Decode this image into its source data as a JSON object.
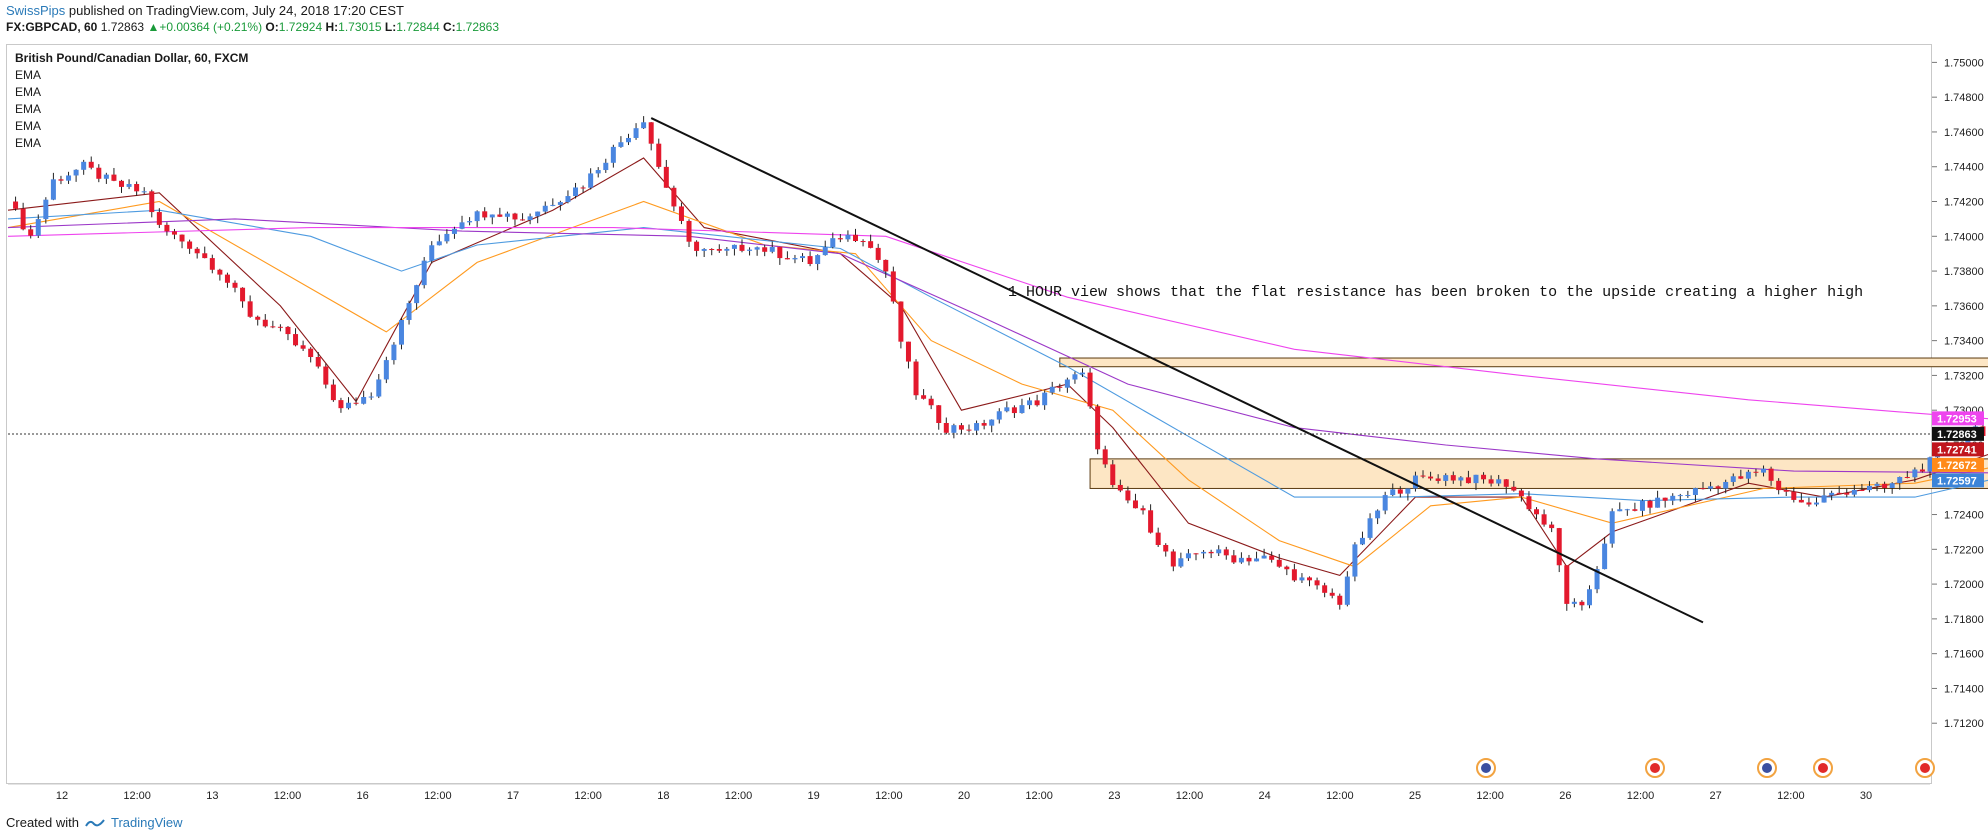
{
  "header": {
    "author": "SwissPips",
    "published": "published on TradingView.com, July 24, 2018 17:20 CEST",
    "symbol": "FX:GBPCAD, 60",
    "last": "1.72863",
    "change": "+0.00364 (+0.21%)",
    "o_label": "O:",
    "open": "1.72924",
    "h_label": "H:",
    "high": "1.73015",
    "l_label": "L:",
    "low": "1.72844",
    "c_label": "C:",
    "close": "1.72863"
  },
  "legend": {
    "title": "British Pound/Canadian Dollar, 60, FXCM",
    "indicators": [
      "EMA",
      "EMA",
      "EMA",
      "EMA",
      "EMA"
    ]
  },
  "footer": {
    "created_with": "Created with",
    "brand": "TradingView"
  },
  "colors": {
    "up": "#4a86e0",
    "down": "#e3192d",
    "ema_fast": "#8b1a1a",
    "ema_mid": "#ff9a1f",
    "ema_slow": "#4e9be0",
    "ema_long": "#9c38c8",
    "ema_xlong": "#ee44ee",
    "zone_fill": "#fde6c4",
    "zone_border": "#5a3a10"
  },
  "chart_data": {
    "type": "candlestick",
    "symbol": "GBPCAD",
    "timeframe": "60",
    "ylim": [
      1.71,
      1.751
    ],
    "y_ticks": [
      "1.75000",
      "1.74800",
      "1.74600",
      "1.74400",
      "1.74200",
      "1.74000",
      "1.73800",
      "1.73600",
      "1.73400",
      "1.73200",
      "1.73000",
      "1.72800",
      "1.72600",
      "1.72400",
      "1.72200",
      "1.72000",
      "1.71800",
      "1.71600",
      "1.71400",
      "1.71200"
    ],
    "x_tick_labels": [
      "12",
      "12:00",
      "13",
      "12:00",
      "16",
      "12:00",
      "17",
      "12:00",
      "18",
      "12:00",
      "19",
      "12:00",
      "20",
      "12:00",
      "23",
      "12:00",
      "24",
      "12:00",
      "25",
      "12:00",
      "26",
      "12:00",
      "27",
      "12:00",
      "30"
    ],
    "x_range": [
      0,
      254
    ],
    "current_price": 1.72863,
    "price_tags": [
      {
        "value": "1.72953",
        "color": "#ee44ee"
      },
      {
        "value": "1.72863",
        "color": "#111111"
      },
      {
        "value": "1.72741",
        "color": "#c0151d"
      },
      {
        "value": "1.72672",
        "color": "#ff8a1a"
      },
      {
        "value": "1.72597",
        "color": "#3c84d8"
      }
    ],
    "path": [
      [
        0,
        1.742
      ],
      [
        3,
        1.74
      ],
      [
        6,
        1.7432
      ],
      [
        10,
        1.744
      ],
      [
        14,
        1.743
      ],
      [
        18,
        1.7425
      ],
      [
        20,
        1.7405
      ],
      [
        24,
        1.7395
      ],
      [
        28,
        1.738
      ],
      [
        32,
        1.7355
      ],
      [
        36,
        1.7345
      ],
      [
        40,
        1.733
      ],
      [
        44,
        1.73
      ],
      [
        48,
        1.731
      ],
      [
        52,
        1.735
      ],
      [
        56,
        1.7395
      ],
      [
        60,
        1.741
      ],
      [
        64,
        1.7415
      ],
      [
        68,
        1.741
      ],
      [
        72,
        1.742
      ],
      [
        76,
        1.743
      ],
      [
        80,
        1.745
      ],
      [
        84,
        1.7468
      ],
      [
        86,
        1.744
      ],
      [
        90,
        1.7395
      ],
      [
        94,
        1.739
      ],
      [
        98,
        1.7395
      ],
      [
        102,
        1.739
      ],
      [
        106,
        1.7385
      ],
      [
        110,
        1.74
      ],
      [
        113,
        1.74
      ],
      [
        116,
        1.738
      ],
      [
        118,
        1.734
      ],
      [
        120,
        1.731
      ],
      [
        124,
        1.729
      ],
      [
        128,
        1.729
      ],
      [
        132,
        1.73
      ],
      [
        136,
        1.7305
      ],
      [
        140,
        1.7318
      ],
      [
        142,
        1.732
      ],
      [
        144,
        1.728
      ],
      [
        146,
        1.7255
      ],
      [
        150,
        1.724
      ],
      [
        154,
        1.721
      ],
      [
        158,
        1.722
      ],
      [
        162,
        1.7215
      ],
      [
        166,
        1.7215
      ],
      [
        170,
        1.7205
      ],
      [
        174,
        1.7195
      ],
      [
        176,
        1.719
      ],
      [
        178,
        1.722
      ],
      [
        182,
        1.725
      ],
      [
        186,
        1.726
      ],
      [
        190,
        1.7262
      ],
      [
        194,
        1.726
      ],
      [
        198,
        1.7258
      ],
      [
        200,
        1.725
      ],
      [
        204,
        1.723
      ],
      [
        206,
        1.719
      ],
      [
        208,
        1.7185
      ],
      [
        210,
        1.721
      ],
      [
        212,
        1.724
      ],
      [
        216,
        1.7245
      ],
      [
        220,
        1.725
      ],
      [
        224,
        1.7255
      ],
      [
        228,
        1.726
      ],
      [
        232,
        1.7265
      ],
      [
        234,
        1.7255
      ],
      [
        236,
        1.725
      ],
      [
        238,
        1.7245
      ],
      [
        240,
        1.725
      ],
      [
        244,
        1.7255
      ],
      [
        248,
        1.7255
      ],
      [
        252,
        1.7265
      ],
      [
        256,
        1.7275
      ],
      [
        260,
        1.729
      ],
      [
        262,
        1.7286
      ]
    ],
    "ema_series": [
      {
        "key": "ema_fast",
        "points": [
          [
            0,
            1.7415
          ],
          [
            20,
            1.7425
          ],
          [
            36,
            1.736
          ],
          [
            46,
            1.7305
          ],
          [
            56,
            1.7385
          ],
          [
            72,
            1.7415
          ],
          [
            84,
            1.7445
          ],
          [
            92,
            1.7405
          ],
          [
            110,
            1.739
          ],
          [
            118,
            1.736
          ],
          [
            126,
            1.73
          ],
          [
            140,
            1.7315
          ],
          [
            146,
            1.729
          ],
          [
            156,
            1.7235
          ],
          [
            168,
            1.7215
          ],
          [
            176,
            1.7205
          ],
          [
            186,
            1.725
          ],
          [
            200,
            1.725
          ],
          [
            206,
            1.721
          ],
          [
            212,
            1.723
          ],
          [
            230,
            1.7258
          ],
          [
            240,
            1.725
          ],
          [
            252,
            1.726
          ],
          [
            262,
            1.7275
          ]
        ]
      },
      {
        "key": "ema_mid",
        "points": [
          [
            0,
            1.7405
          ],
          [
            20,
            1.742
          ],
          [
            40,
            1.737
          ],
          [
            50,
            1.7345
          ],
          [
            62,
            1.7385
          ],
          [
            84,
            1.742
          ],
          [
            100,
            1.7395
          ],
          [
            112,
            1.739
          ],
          [
            122,
            1.734
          ],
          [
            134,
            1.7315
          ],
          [
            146,
            1.73
          ],
          [
            156,
            1.726
          ],
          [
            168,
            1.7225
          ],
          [
            178,
            1.721
          ],
          [
            188,
            1.7245
          ],
          [
            200,
            1.725
          ],
          [
            212,
            1.7235
          ],
          [
            232,
            1.7255
          ],
          [
            252,
            1.7258
          ],
          [
            262,
            1.7267
          ]
        ]
      },
      {
        "key": "ema_slow",
        "points": [
          [
            0,
            1.741
          ],
          [
            20,
            1.7415
          ],
          [
            40,
            1.74
          ],
          [
            52,
            1.738
          ],
          [
            62,
            1.7395
          ],
          [
            84,
            1.7405
          ],
          [
            110,
            1.7393
          ],
          [
            122,
            1.7365
          ],
          [
            140,
            1.7325
          ],
          [
            156,
            1.7285
          ],
          [
            170,
            1.725
          ],
          [
            184,
            1.725
          ],
          [
            200,
            1.7252
          ],
          [
            216,
            1.7248
          ],
          [
            236,
            1.725
          ],
          [
            252,
            1.725
          ],
          [
            262,
            1.726
          ]
        ]
      },
      {
        "key": "ema_long",
        "points": [
          [
            0,
            1.7405
          ],
          [
            30,
            1.741
          ],
          [
            60,
            1.7403
          ],
          [
            90,
            1.74
          ],
          [
            110,
            1.739
          ],
          [
            128,
            1.7355
          ],
          [
            148,
            1.7315
          ],
          [
            170,
            1.729
          ],
          [
            190,
            1.728
          ],
          [
            210,
            1.7272
          ],
          [
            236,
            1.7265
          ],
          [
            262,
            1.7264
          ]
        ]
      },
      {
        "key": "ema_xlong",
        "points": [
          [
            0,
            1.74
          ],
          [
            40,
            1.7405
          ],
          [
            80,
            1.7405
          ],
          [
            116,
            1.74
          ],
          [
            140,
            1.7365
          ],
          [
            170,
            1.7335
          ],
          [
            200,
            1.732
          ],
          [
            230,
            1.7306
          ],
          [
            250,
            1.7299
          ],
          [
            262,
            1.7295
          ]
        ]
      }
    ],
    "trendline": {
      "from": [
        85,
        1.7468
      ],
      "to": [
        224,
        1.7178
      ]
    },
    "zones": [
      {
        "x0": 139,
        "x1": 318,
        "y_low": 1.7325,
        "y_high": 1.733
      },
      {
        "x0": 143,
        "x1": 294,
        "y_low": 1.7255,
        "y_high": 1.7272
      }
    ],
    "arrow": {
      "from": [
        264,
        1.7288
      ],
      "to": [
        275,
        1.7329
      ]
    },
    "annotation": "1 HOUR view shows that the flat resistance has been broken to the upside creating a higher high"
  }
}
